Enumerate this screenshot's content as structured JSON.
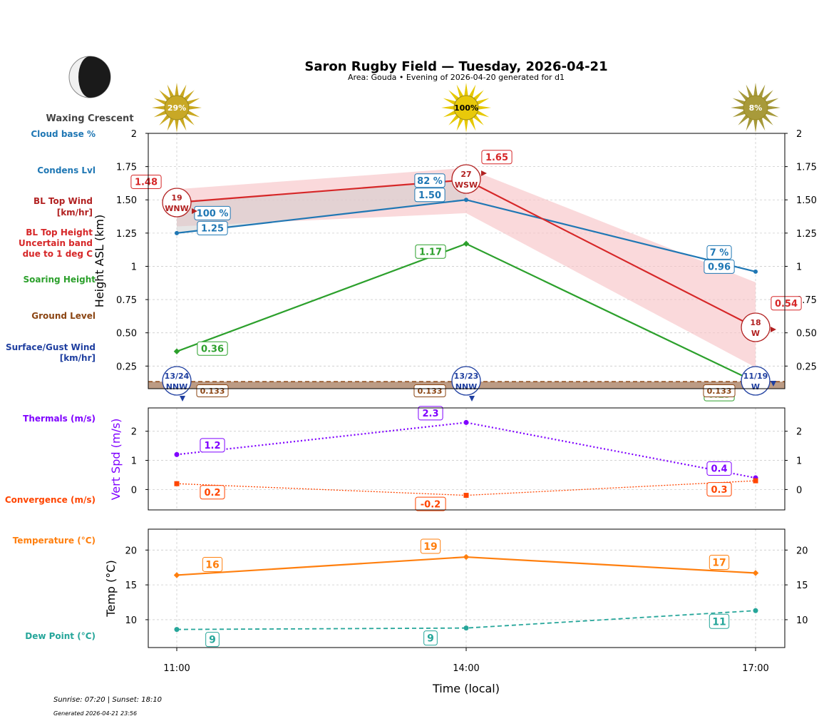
{
  "title": "Saron Rugby Field — Tuesday, 2026-04-21",
  "subtitle": "Area: Gouda • Evening of 2026-04-20 generated for d1",
  "moon": {
    "phase": "Waxing Crescent",
    "icon": "moon-waxing-crescent-icon"
  },
  "sun_percent": [
    "29%",
    "100%",
    "8%"
  ],
  "footer": {
    "sun_times": "Sunrise: 07:20 | Sunset: 18:10",
    "generated": "Generated 2026-04-21 23:56"
  },
  "left_labels": {
    "cloud_base": "Cloud base %",
    "condens": "Condens Lvl",
    "bl_wind_1": "BL Top Wind",
    "bl_wind_2": "[km/hr]",
    "bl_height_1": "BL Top Height",
    "bl_height_2": "Uncertain band",
    "bl_height_3": "due to 1 deg C",
    "soaring": "Soaring Height",
    "ground": "Ground Level",
    "surface_1": "Surface/Gust Wind",
    "surface_2": "[km/hr]",
    "thermals": "Thermals (m/s)",
    "convergence": "Convergence (m/s)",
    "temperature": "Temperature (°C)",
    "dewpoint": "Dew Point (°C)"
  },
  "colors": {
    "condens": "#1f77b4",
    "bl_top": "#d62728",
    "bl_wind": "#b22222",
    "soaring": "#2ca02c",
    "ground": "#8b4513",
    "surface_wind": "#1f3fa0",
    "thermals": "#7f00ff",
    "convergence": "#ff4500",
    "temperature": "#ff7f0e",
    "dewpoint": "#26a69a",
    "band_fill": "#f7c5c8",
    "cloud_fill": "#cccccc",
    "sun": "#e8c90a"
  },
  "chart_data": [
    {
      "type": "line",
      "ylabel": "Height ASL (km)",
      "xlabel": "",
      "x": [
        "11:00",
        "14:00",
        "17:00"
      ],
      "ylim": [
        0.08,
        2.0
      ],
      "yticks": [
        0.25,
        0.5,
        0.75,
        1.0,
        1.25,
        1.5,
        1.75,
        2.0
      ],
      "grid": true,
      "series": [
        {
          "key": "condens",
          "values": [
            1.25,
            1.5,
            0.96
          ],
          "labels": [
            "1.25",
            "1.50",
            "0.96"
          ]
        },
        {
          "key": "cloud_base",
          "values": [
            1.25,
            1.5,
            0.96
          ],
          "labels": [
            "100 %",
            "82 %",
            "7 %"
          ]
        },
        {
          "key": "bl_top",
          "values": [
            1.48,
            1.65,
            0.54
          ],
          "labels": [
            "1.48",
            "1.65",
            "0.54"
          ],
          "band_upper": [
            1.58,
            1.74,
            0.88
          ],
          "band_lower": [
            1.3,
            1.4,
            0.24
          ]
        },
        {
          "key": "soaring",
          "values": [
            0.36,
            1.17,
            0.13
          ],
          "labels": [
            "0.36",
            "1.17",
            "0.13"
          ]
        },
        {
          "key": "ground",
          "values": [
            0.133,
            0.133,
            0.133
          ],
          "labels": [
            "0.133",
            "0.133",
            "0.133"
          ]
        }
      ],
      "bl_wind": [
        {
          "speed": "19",
          "dir": "WNW"
        },
        {
          "speed": "27",
          "dir": "WSW"
        },
        {
          "speed": "18",
          "dir": "W"
        }
      ],
      "surface_wind": [
        {
          "speed": "13/24",
          "dir": "NNW"
        },
        {
          "speed": "13/23",
          "dir": "NNW"
        },
        {
          "speed": "11/19",
          "dir": "W"
        }
      ]
    },
    {
      "type": "line",
      "ylabel": "Vert Spd (m/s)",
      "x": [
        "11:00",
        "14:00",
        "17:00"
      ],
      "ylim": [
        -0.7,
        2.8
      ],
      "yticks": [
        0,
        1,
        2
      ],
      "grid": true,
      "series": [
        {
          "key": "thermals",
          "values": [
            1.2,
            2.3,
            0.4
          ],
          "labels": [
            "1.2",
            "2.3",
            "0.4"
          ]
        },
        {
          "key": "convergence",
          "values": [
            0.2,
            -0.2,
            0.3
          ],
          "labels": [
            "0.2",
            "-0.2",
            "0.3"
          ]
        }
      ]
    },
    {
      "type": "line",
      "ylabel": "Temp (°C)",
      "xlabel": "Time (local)",
      "x": [
        "11:00",
        "14:00",
        "17:00"
      ],
      "ylim": [
        6,
        23
      ],
      "yticks": [
        10,
        15,
        20
      ],
      "grid": true,
      "series": [
        {
          "key": "temperature",
          "values": [
            16.4,
            19.0,
            16.7
          ],
          "labels": [
            "16",
            "19",
            "17"
          ]
        },
        {
          "key": "dewpoint",
          "values": [
            8.6,
            8.8,
            11.3
          ],
          "labels": [
            "9",
            "9",
            "11"
          ]
        }
      ]
    }
  ]
}
